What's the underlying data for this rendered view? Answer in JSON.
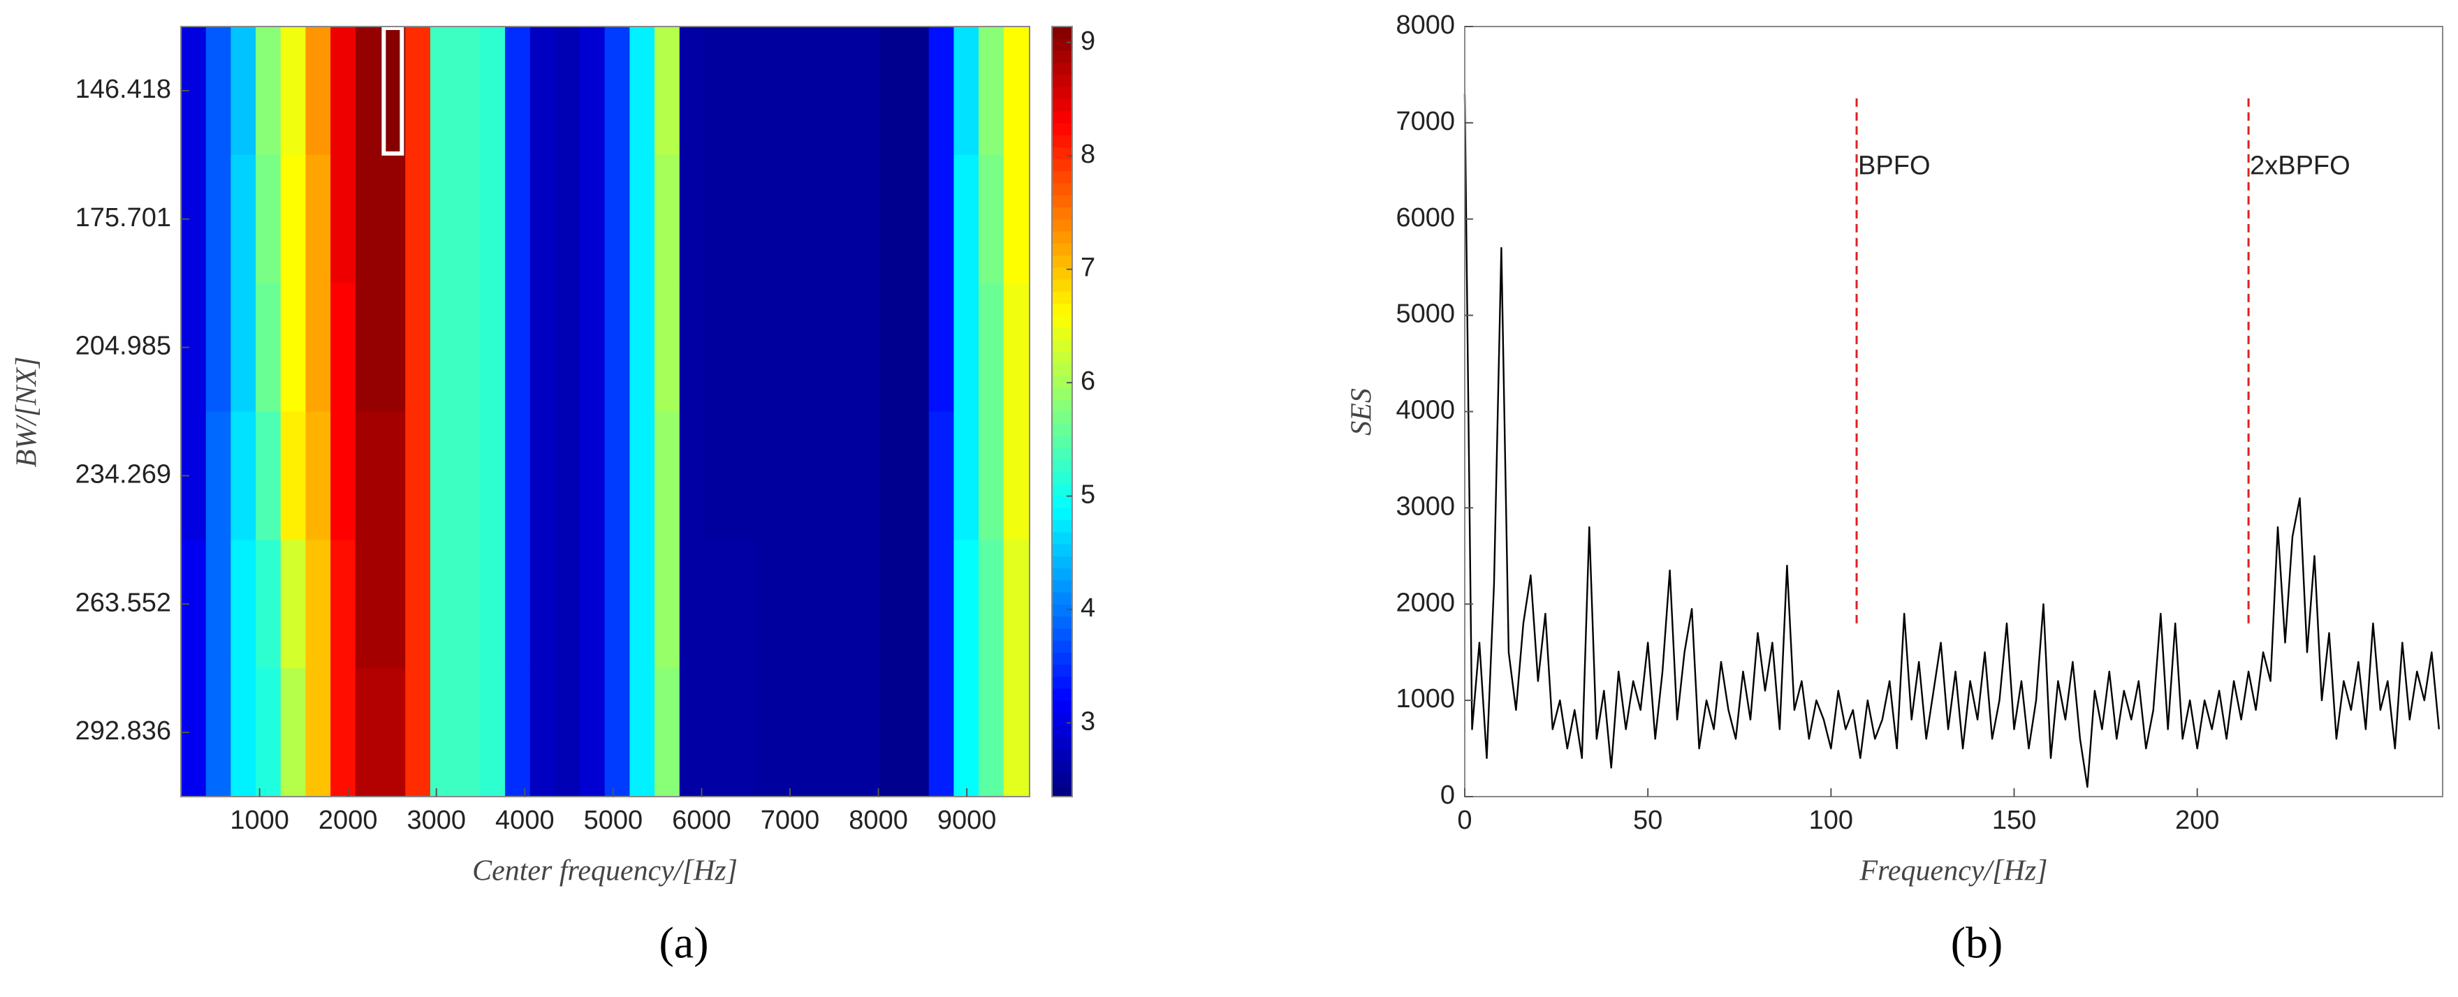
{
  "chart_data": [
    {
      "type": "heatmap",
      "xlabel": "Center frequency/[Hz]",
      "ylabel": "BW/[NX]",
      "caption": "(a)",
      "x": [
        251,
        533,
        815,
        1097,
        1379,
        1661,
        1943,
        2225,
        2507,
        2789,
        3071,
        3353,
        3635,
        3917,
        4199,
        4481,
        4763,
        5045,
        5327,
        5609,
        5891,
        6173,
        6455,
        6737,
        7019,
        7301,
        7583,
        7865,
        8147,
        8429,
        8711,
        8993,
        9275,
        9557
      ],
      "categories": [
        "146.418",
        "175.701",
        "204.985",
        "234.269",
        "263.552",
        "292.836"
      ],
      "values": [
        [
          3.0,
          3.8,
          4.5,
          5.8,
          6.5,
          7.3,
          8.4,
          9.0,
          9.1,
          8.0,
          5.3,
          5.3,
          5.2,
          3.5,
          2.8,
          2.7,
          2.9,
          3.6,
          4.8,
          6.1,
          2.6,
          2.55,
          2.55,
          2.55,
          2.55,
          2.55,
          2.55,
          2.55,
          2.45,
          2.45,
          3.3,
          4.7,
          5.8,
          6.6
        ],
        [
          3.0,
          3.8,
          4.6,
          5.7,
          6.6,
          7.2,
          8.4,
          9.0,
          9.0,
          8.0,
          5.3,
          5.3,
          5.2,
          3.5,
          2.8,
          2.7,
          2.9,
          3.6,
          4.8,
          6.0,
          2.6,
          2.55,
          2.55,
          2.55,
          2.55,
          2.55,
          2.55,
          2.55,
          2.45,
          2.45,
          3.3,
          4.8,
          5.7,
          6.6
        ],
        [
          3.0,
          3.8,
          4.6,
          5.6,
          6.6,
          7.2,
          8.3,
          9.0,
          9.0,
          8.0,
          5.3,
          5.3,
          5.2,
          3.5,
          2.8,
          2.7,
          2.9,
          3.6,
          4.8,
          6.0,
          2.6,
          2.55,
          2.55,
          2.55,
          2.55,
          2.55,
          2.55,
          2.55,
          2.45,
          2.45,
          3.3,
          4.8,
          5.6,
          6.5
        ],
        [
          3.0,
          3.9,
          4.7,
          5.4,
          6.7,
          7.1,
          8.3,
          8.9,
          8.9,
          8.0,
          5.3,
          5.3,
          5.2,
          3.5,
          2.8,
          2.7,
          2.9,
          3.6,
          4.8,
          5.9,
          2.6,
          2.55,
          2.55,
          2.55,
          2.55,
          2.55,
          2.55,
          2.55,
          2.45,
          2.45,
          3.4,
          4.8,
          5.6,
          6.5
        ],
        [
          3.1,
          3.9,
          4.8,
          5.2,
          6.3,
          7.0,
          8.2,
          8.9,
          8.9,
          8.0,
          5.3,
          5.3,
          5.2,
          3.5,
          2.8,
          2.7,
          2.9,
          3.6,
          4.8,
          5.9,
          2.6,
          2.6,
          2.6,
          2.55,
          2.55,
          2.55,
          2.55,
          2.55,
          2.45,
          2.45,
          3.4,
          4.9,
          5.5,
          6.4
        ],
        [
          3.1,
          3.9,
          4.8,
          5.1,
          6.1,
          7.0,
          8.2,
          8.8,
          8.8,
          8.0,
          5.3,
          5.3,
          5.2,
          3.5,
          2.8,
          2.7,
          2.9,
          3.6,
          4.8,
          5.8,
          2.6,
          2.6,
          2.6,
          2.55,
          2.55,
          2.55,
          2.55,
          2.55,
          2.45,
          2.45,
          3.4,
          4.9,
          5.5,
          6.4
        ]
      ],
      "xlim": [
        110,
        9710
      ],
      "xticks": [
        1000,
        2000,
        3000,
        4000,
        5000,
        6000,
        7000,
        8000,
        9000
      ],
      "colormap": "jet",
      "clim": [
        2.35,
        9.14
      ],
      "cticks": [
        3,
        4,
        5,
        6,
        7,
        8,
        9
      ],
      "highlight": [
        0,
        8
      ]
    },
    {
      "type": "line",
      "xlabel": "Frequency/[Hz]",
      "ylabel": "SES",
      "caption": "(b)",
      "x": [
        0,
        2,
        4,
        6,
        8,
        10,
        12,
        14,
        16,
        18,
        20,
        22,
        24,
        26,
        28,
        30,
        32,
        34,
        36,
        38,
        40,
        42,
        44,
        46,
        48,
        50,
        52,
        54,
        56,
        58,
        60,
        62,
        64,
        66,
        68,
        70,
        72,
        74,
        76,
        78,
        80,
        82,
        84,
        86,
        88,
        90,
        92,
        94,
        96,
        98,
        100,
        102,
        104,
        106,
        108,
        110,
        112,
        114,
        116,
        118,
        120,
        122,
        124,
        126,
        128,
        130,
        132,
        134,
        136,
        138,
        140,
        142,
        144,
        146,
        148,
        150,
        152,
        154,
        156,
        158,
        160,
        162,
        164,
        166,
        168,
        170,
        172,
        174,
        176,
        178,
        180,
        182,
        184,
        186,
        188,
        190,
        192,
        194,
        196,
        198,
        200,
        202,
        204,
        206,
        208,
        210,
        212,
        214,
        216,
        218,
        220,
        222,
        224,
        226,
        228,
        230,
        232,
        234,
        236,
        238,
        240,
        242,
        244,
        246,
        248,
        250,
        252,
        254,
        256,
        258,
        260,
        262,
        264,
        266
      ],
      "series": [
        {
          "name": "SES",
          "color": "#000000",
          "values": [
            7300,
            700,
            1600,
            400,
            2200,
            5700,
            1500,
            900,
            1800,
            2300,
            1200,
            1900,
            700,
            1000,
            500,
            900,
            400,
            2800,
            600,
            1100,
            300,
            1300,
            700,
            1200,
            900,
            1600,
            600,
            1300,
            2350,
            800,
            1500,
            1950,
            500,
            1000,
            700,
            1400,
            900,
            600,
            1300,
            800,
            1700,
            1100,
            1600,
            700,
            2400,
            900,
            1200,
            600,
            1000,
            800,
            500,
            1100,
            700,
            900,
            400,
            1000,
            600,
            800,
            1200,
            500,
            1900,
            800,
            1400,
            600,
            1100,
            1600,
            700,
            1300,
            500,
            1200,
            800,
            1500,
            600,
            1000,
            1800,
            700,
            1200,
            500,
            1000,
            2000,
            400,
            1200,
            800,
            1400,
            600,
            100,
            1100,
            700,
            1300,
            600,
            1100,
            800,
            1200,
            500,
            900,
            1900,
            700,
            1800,
            600,
            1000,
            500,
            1000,
            700,
            1100,
            600,
            1200,
            800,
            1300,
            900,
            1500,
            1200,
            2800,
            1600,
            2700,
            3100,
            1500,
            2500,
            1000,
            1700,
            600,
            1200,
            900,
            1400,
            700,
            1800,
            900,
            1200,
            500,
            1600,
            800,
            1300,
            1000,
            1500,
            700
          ]
        }
      ],
      "xlim": [
        0,
        267
      ],
      "xticks": [
        0,
        50,
        100,
        150,
        200
      ],
      "ylim": [
        0,
        8000
      ],
      "yticks": [
        0,
        1000,
        2000,
        3000,
        4000,
        5000,
        6000,
        7000,
        8000
      ],
      "annotations": [
        {
          "label": "BPFO",
          "x": 107,
          "y": [
            1800,
            7300
          ],
          "color": "#e02020"
        },
        {
          "label": "2xBPFO",
          "x": 214,
          "y": [
            1800,
            7300
          ],
          "color": "#e02020"
        }
      ]
    }
  ]
}
